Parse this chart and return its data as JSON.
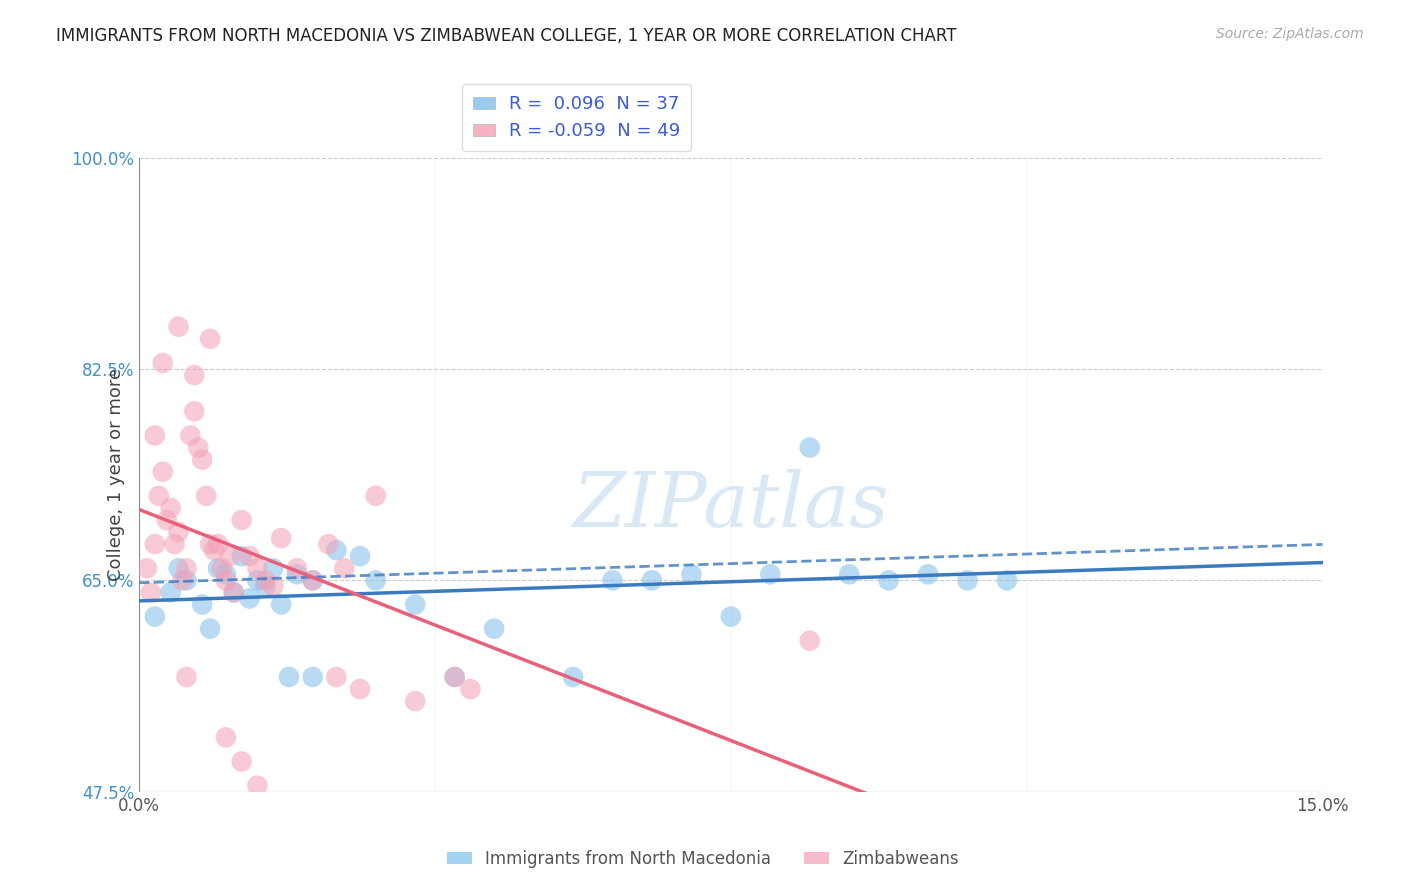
{
  "title": "IMMIGRANTS FROM NORTH MACEDONIA VS ZIMBABWEAN COLLEGE, 1 YEAR OR MORE CORRELATION CHART",
  "source": "Source: ZipAtlas.com",
  "ylabel": "College, 1 year or more",
  "xlim": [
    0.0,
    15.0
  ],
  "ylim": [
    47.5,
    100.0
  ],
  "xticks": [
    0.0,
    3.75,
    7.5,
    11.25,
    15.0
  ],
  "xtick_labels": [
    "0.0%",
    "",
    "",
    "",
    "15.0%"
  ],
  "ytick_labels": [
    "100.0%",
    "82.5%",
    "65.0%",
    "47.5%"
  ],
  "yticks": [
    100.0,
    82.5,
    65.0,
    47.5
  ],
  "blue_color": "#7fbfea",
  "pink_color": "#f4a0b5",
  "blue_line_color": "#3a7abf",
  "blue_line_color2": "#7fbfea",
  "pink_line_color": "#e8607a",
  "R_blue": 0.096,
  "N_blue": 37,
  "R_pink": -0.059,
  "N_pink": 49,
  "legend_label_blue": "Immigrants from North Macedonia",
  "legend_label_pink": "Zimbabweans",
  "watermark": "ZIPatlas",
  "blue_scatter_x": [
    0.2,
    0.4,
    0.5,
    0.6,
    0.8,
    0.9,
    1.0,
    1.1,
    1.2,
    1.3,
    1.4,
    1.5,
    1.6,
    1.7,
    1.8,
    1.9,
    2.0,
    2.2,
    2.5,
    2.8,
    3.0,
    3.5,
    4.0,
    4.5,
    5.5,
    6.0,
    6.5,
    7.0,
    7.5,
    8.0,
    8.5,
    9.0,
    9.5,
    10.0,
    10.5,
    11.0,
    2.2
  ],
  "blue_scatter_y": [
    62.0,
    64.0,
    66.0,
    65.0,
    63.0,
    61.0,
    66.0,
    65.5,
    64.0,
    67.0,
    63.5,
    65.0,
    64.5,
    66.0,
    63.0,
    57.0,
    65.5,
    57.0,
    67.5,
    67.0,
    65.0,
    63.0,
    57.0,
    61.0,
    57.0,
    65.0,
    65.0,
    65.5,
    62.0,
    65.5,
    76.0,
    65.5,
    65.0,
    65.5,
    65.0,
    65.0,
    65.0
  ],
  "pink_scatter_x": [
    0.1,
    0.15,
    0.2,
    0.25,
    0.3,
    0.35,
    0.4,
    0.45,
    0.5,
    0.55,
    0.6,
    0.65,
    0.7,
    0.75,
    0.8,
    0.85,
    0.9,
    0.95,
    1.0,
    1.05,
    1.1,
    1.15,
    1.2,
    1.3,
    1.4,
    1.5,
    1.6,
    1.7,
    1.8,
    2.0,
    2.2,
    2.4,
    2.5,
    2.6,
    2.8,
    3.0,
    3.5,
    4.0,
    4.2,
    0.3,
    0.5,
    0.7,
    0.9,
    1.1,
    1.3,
    1.5,
    0.6,
    8.5,
    0.2
  ],
  "pink_scatter_y": [
    66.0,
    64.0,
    68.0,
    72.0,
    74.0,
    70.0,
    71.0,
    68.0,
    69.0,
    65.0,
    66.0,
    77.0,
    79.0,
    76.0,
    75.0,
    72.0,
    68.0,
    67.5,
    68.0,
    66.0,
    65.0,
    67.0,
    64.0,
    70.0,
    67.0,
    66.0,
    65.0,
    64.5,
    68.5,
    66.0,
    65.0,
    68.0,
    57.0,
    66.0,
    56.0,
    72.0,
    55.0,
    57.0,
    56.0,
    83.0,
    86.0,
    82.0,
    85.0,
    52.0,
    50.0,
    48.0,
    57.0,
    60.0,
    77.0
  ]
}
